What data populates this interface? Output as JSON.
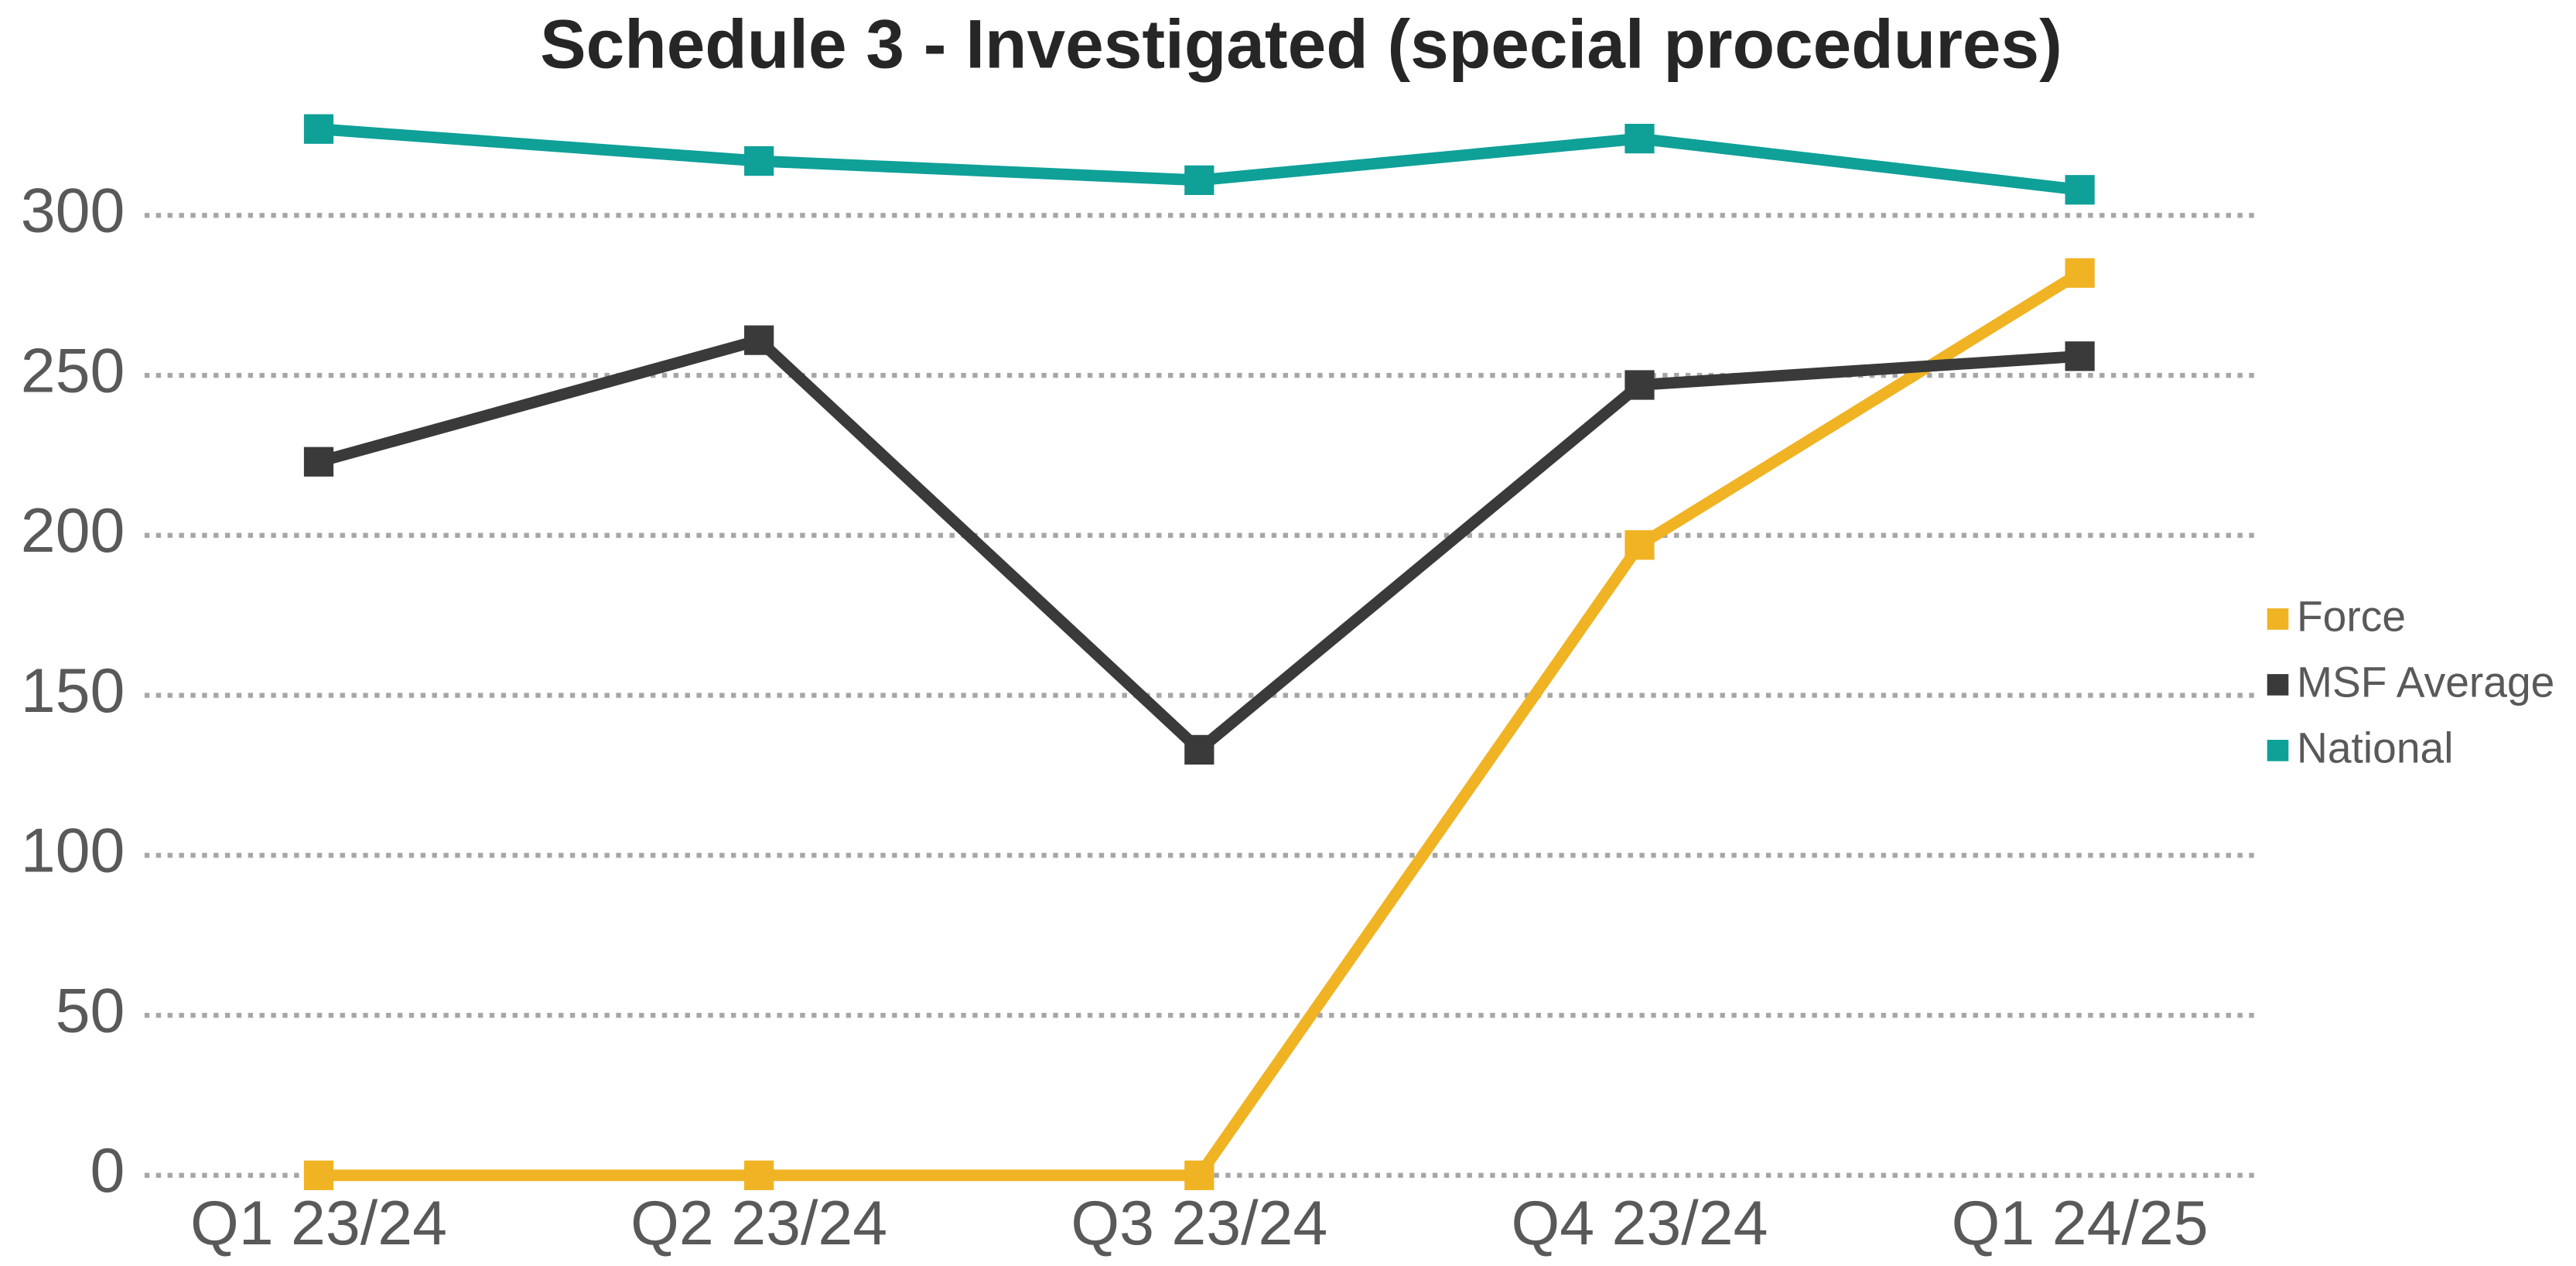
{
  "chart_data": {
    "type": "line",
    "title": "Schedule 3 - Investigated (special procedures)",
    "categories": [
      "Q1 23/24",
      "Q2 23/24",
      "Q3 23/24",
      "Q4 23/24",
      "Q1 24/25"
    ],
    "series": [
      {
        "name": "Force",
        "color": "#f0b323",
        "values": [
          0,
          0,
          0,
          197,
          282
        ]
      },
      {
        "name": "MSF Average",
        "color": "#3a3a3a",
        "values": [
          223,
          261,
          133,
          247,
          256
        ]
      },
      {
        "name": "National",
        "color": "#0fa098",
        "values": [
          327,
          317,
          311,
          324,
          308
        ]
      }
    ],
    "ylim": [
      0,
      350
    ],
    "yticks": [
      0,
      50,
      100,
      150,
      200,
      250,
      300
    ],
    "grid": true,
    "legend": "right"
  }
}
